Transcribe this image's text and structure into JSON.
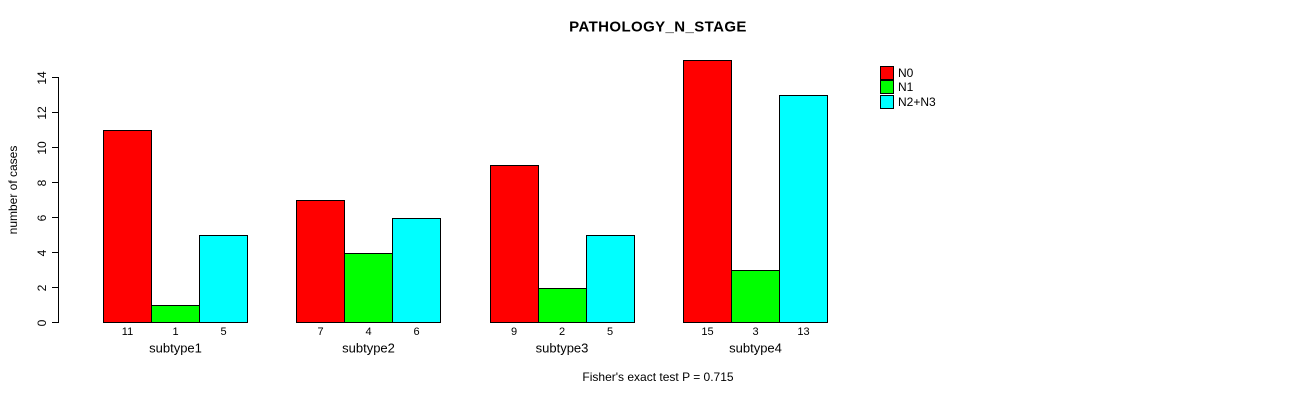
{
  "colors": {
    "background": "#ffffff",
    "text": "#000000",
    "bar_border": "#000000"
  },
  "chart_data": {
    "type": "bar",
    "title": "PATHOLOGY_N_STAGE",
    "xlabel": "",
    "ylabel": "number of cases",
    "categories": [
      "subtype1",
      "subtype2",
      "subtype3",
      "subtype4"
    ],
    "series": [
      {
        "name": "N0",
        "color": "#ff0000",
        "values": [
          11,
          7,
          9,
          15
        ]
      },
      {
        "name": "N1",
        "color": "#00ff00",
        "values": [
          1,
          4,
          2,
          3
        ]
      },
      {
        "name": "N2+N3",
        "color": "#00ffff",
        "values": [
          5,
          6,
          5,
          13
        ]
      }
    ],
    "bar_value_labels": true,
    "ylim": [
      0,
      14
    ],
    "yticks": [
      0,
      2,
      4,
      6,
      8,
      10,
      12,
      14
    ],
    "grid": false,
    "legend_position": "top-right",
    "annotation": "Fisher's exact test P = 0.715"
  }
}
